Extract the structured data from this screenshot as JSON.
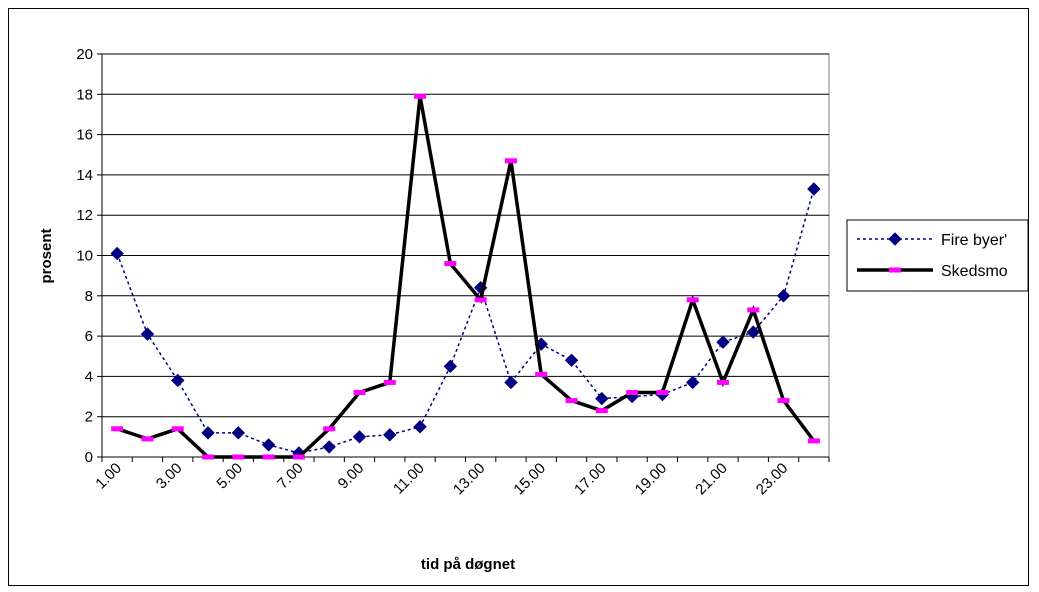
{
  "chart_data": {
    "type": "line",
    "xlabel": "tid på døgnet",
    "ylabel": "prosent",
    "ylim": [
      0,
      20
    ],
    "yticks": [
      0,
      2,
      4,
      6,
      8,
      10,
      12,
      14,
      16,
      18,
      20
    ],
    "x": [
      1,
      2,
      3,
      4,
      5,
      6,
      7,
      8,
      9,
      10,
      11,
      12,
      13,
      14,
      15,
      16,
      17,
      18,
      19,
      20,
      21,
      22,
      23,
      24
    ],
    "xtick_labels": [
      "1.00",
      "3.00",
      "5.00",
      "7.00",
      "9.00",
      "11.00",
      "13.00",
      "15.00",
      "17.00",
      "19.00",
      "21.00",
      "23.00"
    ],
    "grid": "horizontal",
    "legend_position": "right",
    "series": [
      {
        "name": "Fire byer'",
        "values": [
          10.1,
          6.1,
          3.8,
          1.2,
          1.2,
          0.6,
          0.2,
          0.5,
          1.0,
          1.1,
          1.5,
          4.5,
          8.4,
          3.7,
          5.6,
          4.8,
          2.9,
          3.0,
          3.1,
          3.7,
          5.7,
          6.2,
          8.0,
          13.3
        ],
        "color": "#000080",
        "marker_color": "#000080",
        "style": "dotted",
        "marker": "diamond"
      },
      {
        "name": "Skedsmo",
        "values": [
          1.4,
          0.9,
          1.4,
          0.0,
          0.0,
          0.0,
          0.0,
          1.4,
          3.2,
          3.7,
          17.9,
          9.6,
          7.8,
          14.7,
          4.1,
          2.8,
          2.3,
          3.2,
          3.2,
          7.8,
          3.7,
          7.3,
          2.8,
          0.8
        ],
        "color": "#000000",
        "marker_color": "#ff00ff",
        "style": "solid",
        "marker": "dash"
      }
    ]
  }
}
